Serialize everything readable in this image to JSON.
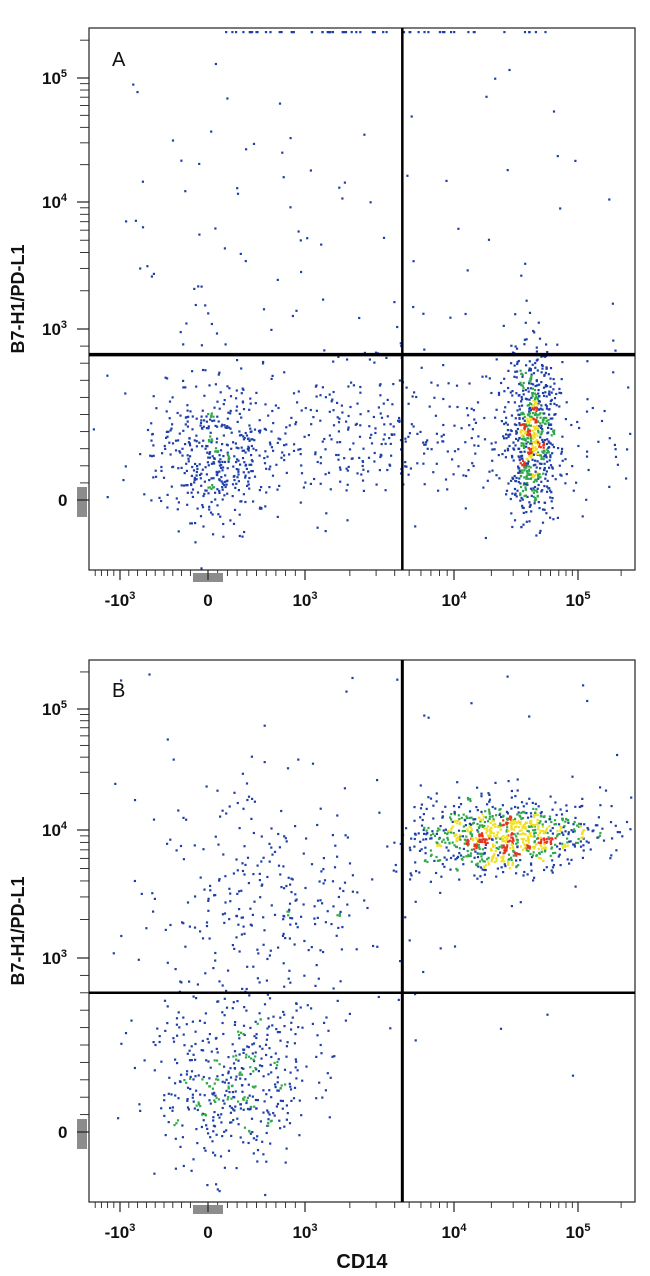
{
  "chart_data": [
    {
      "type": "scatter",
      "panel_label": "A",
      "xlabel": "",
      "ylabel": "B7-H1/PD-L1",
      "x_scale": "biexponential",
      "y_scale": "biexponential",
      "xlim": [
        -1500,
        250000
      ],
      "ylim": [
        -700,
        250000
      ],
      "x_ticks": [
        {
          "value": -1000,
          "base": "-10",
          "exp": "3"
        },
        {
          "value": 0,
          "base": "0",
          "exp": ""
        },
        {
          "value": 1000,
          "base": "10",
          "exp": "3"
        },
        {
          "value": 10000,
          "base": "10",
          "exp": "4"
        },
        {
          "value": 100000,
          "base": "10",
          "exp": "5"
        }
      ],
      "y_ticks": [
        {
          "value": 0,
          "base": "0",
          "exp": ""
        },
        {
          "value": 1000,
          "base": "10",
          "exp": "3"
        },
        {
          "value": 10000,
          "base": "10",
          "exp": "4"
        },
        {
          "value": 100000,
          "base": "10",
          "exp": "5"
        }
      ],
      "gates": {
        "x": 4500,
        "y": 850
      },
      "populations": [
        {
          "name": "",
          "x": 60,
          "y": 250,
          "count": 380,
          "sx": 0.22,
          "sy": 0.24,
          "peak": "green"
        },
        {
          "name": "",
          "x": 42000,
          "y": 400,
          "count": 700,
          "sx": 0.09,
          "sy": 0.3,
          "peak": "red"
        },
        {
          "name": "",
          "x": 3000,
          "y": 380,
          "count": 450,
          "sx": 0.9,
          "sy": 0.25,
          "peak": "blue"
        },
        {
          "name": "",
          "x": 300,
          "y": 3000,
          "count": 60,
          "sx": 0.6,
          "sy": 0.7,
          "peak": "blue"
        }
      ]
    },
    {
      "type": "scatter",
      "panel_label": "B",
      "xlabel": "CD14",
      "ylabel": "B7-H1/PD-L1",
      "x_scale": "biexponential",
      "y_scale": "biexponential",
      "xlim": [
        -1500,
        250000
      ],
      "ylim": [
        -700,
        250000
      ],
      "x_ticks": [
        {
          "value": -1000,
          "base": "-10",
          "exp": "3"
        },
        {
          "value": 0,
          "base": "0",
          "exp": ""
        },
        {
          "value": 1000,
          "base": "10",
          "exp": "3"
        },
        {
          "value": 10000,
          "base": "10",
          "exp": "4"
        },
        {
          "value": 100000,
          "base": "10",
          "exp": "5"
        }
      ],
      "y_ticks": [
        {
          "value": 0,
          "base": "0",
          "exp": ""
        },
        {
          "value": 1000,
          "base": "10",
          "exp": "3"
        },
        {
          "value": 10000,
          "base": "10",
          "exp": "4"
        },
        {
          "value": 100000,
          "base": "10",
          "exp": "5"
        }
      ],
      "gates": {
        "x": 4500,
        "y": 800
      },
      "populations": [
        {
          "name": "",
          "x": 25000,
          "y": 9000,
          "count": 900,
          "sx": 0.32,
          "sy": 0.13,
          "peak": "red"
        },
        {
          "name": "",
          "x": 250,
          "y": 300,
          "count": 450,
          "sx": 0.28,
          "sy": 0.3,
          "peak": "green"
        },
        {
          "name": "",
          "x": 600,
          "y": 2500,
          "count": 300,
          "sx": 0.45,
          "sy": 0.45,
          "peak": "blue"
        }
      ]
    }
  ],
  "colors": {
    "low": "#1f3fa8",
    "mid": "#2fa84a",
    "high": "#f0e020",
    "peak": "#e8321e",
    "gate": "#000000",
    "axis": "#222222",
    "zero_marker": "#8c8c8c"
  }
}
